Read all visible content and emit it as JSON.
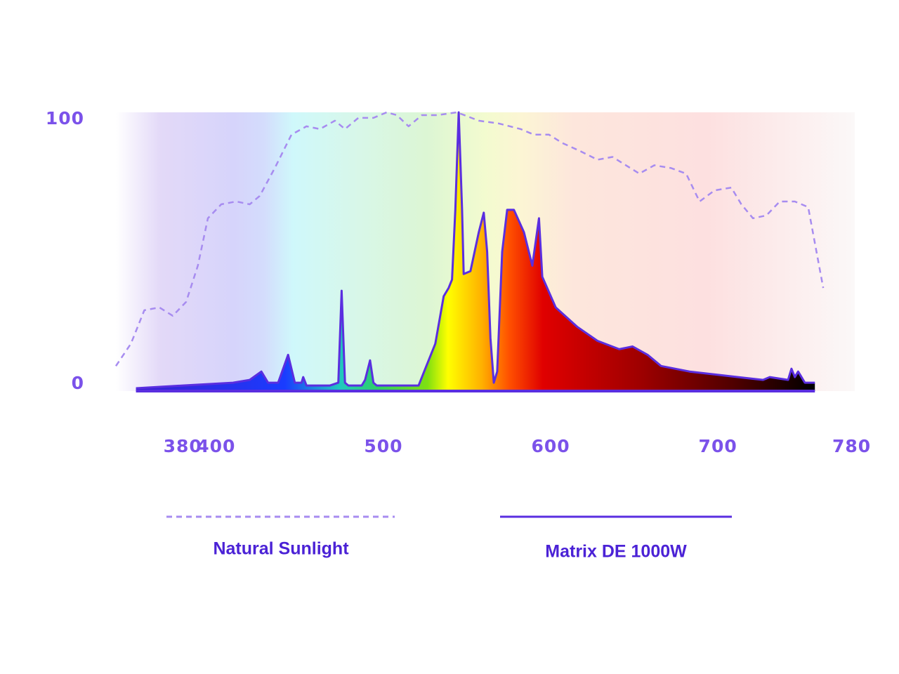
{
  "chart_data": {
    "type": "spectrum",
    "xlim": [
      340,
      781
    ],
    "xticks": [
      380,
      400,
      500,
      600,
      700,
      780
    ],
    "ylim": [
      0,
      100
    ],
    "yticks": [
      0,
      100
    ],
    "series": [
      {
        "name": "Natural Sunlight",
        "color": "#a78cf0",
        "style": "dashed",
        "x": [
          340,
          349,
          357,
          366,
          374,
          382,
          389,
          395,
          403,
          412,
          420,
          426,
          435,
          445,
          454,
          462,
          471,
          477,
          485,
          494,
          502,
          508,
          515,
          523,
          532,
          544,
          557,
          569,
          582,
          590,
          599,
          607,
          618,
          628,
          637,
          645,
          653,
          662,
          672,
          681,
          689,
          698,
          708,
          714,
          721,
          729,
          737,
          746,
          754,
          763
        ],
        "values": [
          9,
          17,
          29,
          30,
          27,
          32,
          45,
          62,
          67,
          68,
          67,
          70,
          80,
          92,
          95,
          94,
          97,
          94,
          98,
          98,
          100,
          99,
          95,
          99,
          99,
          100,
          97,
          96,
          94,
          92,
          92,
          89,
          86,
          83,
          84,
          81,
          78,
          81,
          80,
          78,
          68,
          72,
          73,
          67,
          62,
          63,
          68,
          68,
          66,
          37
        ]
      },
      {
        "name": "Matrix DE 1000W",
        "color": "#5a2ee0",
        "style": "solid",
        "x": [
          352,
          380,
          410,
          420,
          427,
          431,
          437,
          443,
          447,
          451,
          452,
          454,
          468,
          473,
          475,
          477,
          479,
          487,
          489,
          492,
          494,
          496,
          521,
          525,
          531,
          536,
          539,
          541,
          543,
          545,
          547,
          548,
          552,
          557,
          560,
          562,
          564,
          566,
          568,
          571,
          574,
          578,
          584,
          589,
          593,
          595,
          603,
          616,
          628,
          641,
          649,
          658,
          666,
          683,
          712,
          727,
          731,
          742,
          744,
          746,
          748,
          752,
          758
        ],
        "values": [
          1,
          2,
          3,
          4,
          7,
          3,
          3,
          13,
          3,
          3,
          5,
          2,
          2,
          3,
          36,
          3,
          2,
          2,
          4,
          11,
          3,
          2,
          2,
          8,
          17,
          34,
          37,
          40,
          65,
          100,
          65,
          42,
          43,
          57,
          64,
          50,
          19,
          3,
          7,
          50,
          65,
          65,
          57,
          45,
          62,
          41,
          30,
          23,
          18,
          15,
          16,
          13,
          9,
          7,
          5,
          4,
          5,
          4,
          8,
          5,
          7,
          3,
          3
        ]
      }
    ]
  }
}
